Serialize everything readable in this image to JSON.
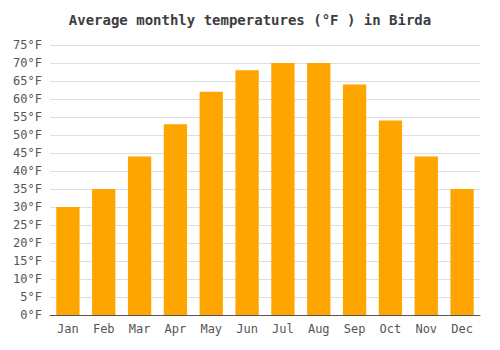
{
  "chart_data": {
    "type": "bar",
    "title": "Average monthly temperatures (°F ) in Birda",
    "categories": [
      "Jan",
      "Feb",
      "Mar",
      "Apr",
      "May",
      "Jun",
      "Jul",
      "Aug",
      "Sep",
      "Oct",
      "Nov",
      "Dec"
    ],
    "values": [
      30,
      35,
      44,
      53,
      62,
      68,
      70,
      70,
      64,
      54,
      44,
      35
    ],
    "color": "#FFA500",
    "ylim": [
      0,
      75
    ],
    "yticks": [
      {
        "value": 0,
        "label": "0°F"
      },
      {
        "value": 5,
        "label": "5°F"
      },
      {
        "value": 10,
        "label": "10°F"
      },
      {
        "value": 15,
        "label": "15°F"
      },
      {
        "value": 20,
        "label": "20°F"
      },
      {
        "value": 25,
        "label": "25°F"
      },
      {
        "value": 30,
        "label": "30°F"
      },
      {
        "value": 35,
        "label": "35°F"
      },
      {
        "value": 40,
        "label": "40°F"
      },
      {
        "value": 45,
        "label": "45°F"
      },
      {
        "value": 50,
        "label": "50°F"
      },
      {
        "value": 55,
        "label": "55°F"
      },
      {
        "value": 60,
        "label": "60°F"
      },
      {
        "value": 65,
        "label": "65°F"
      },
      {
        "value": 70,
        "label": "70°F"
      },
      {
        "value": 75,
        "label": "75°F"
      }
    ],
    "grid": true
  }
}
